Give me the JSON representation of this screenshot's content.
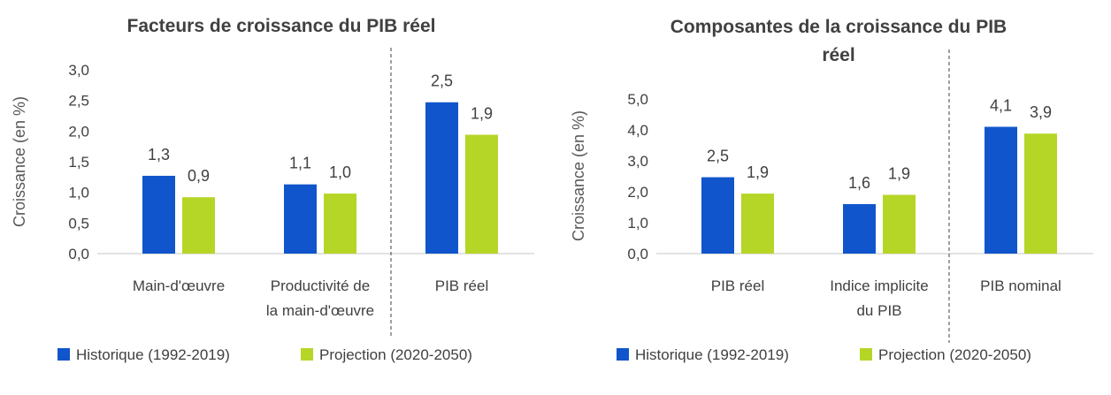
{
  "colors": {
    "historique": "#1155CC",
    "projection": "#B5D626",
    "axis": "#D9D9D9",
    "divider": "#404040"
  },
  "chart_data": [
    {
      "type": "bar",
      "title": [
        "Facteurs de croissance du PIB réel"
      ],
      "ylabel": "Croissance (en %)",
      "ylim": [
        0,
        3
      ],
      "yticks": [
        "0,0",
        "0,5",
        "1,0",
        "1,5",
        "2,0",
        "2,5",
        "3,0"
      ],
      "categories": [
        [
          "Main-d'œuvre"
        ],
        [
          "Productivité de",
          "la main-d'œuvre"
        ],
        [
          "PIB réel"
        ]
      ],
      "series": [
        {
          "name": "Historique (1992-2019)",
          "values": [
            1.27,
            1.13,
            2.47
          ],
          "labels": [
            "1,3",
            "1,1",
            "2,5"
          ]
        },
        {
          "name": "Projection (2020-2050)",
          "values": [
            0.92,
            0.98,
            1.94
          ],
          "labels": [
            "0,9",
            "1,0",
            "1,9"
          ]
        }
      ],
      "divider_after_category": 1,
      "legend": "bottom-left"
    },
    {
      "type": "bar",
      "title": [
        "Composantes de la croissance du PIB",
        "réel"
      ],
      "ylabel": "Croissance (en %)",
      "ylim": [
        0,
        5
      ],
      "yticks": [
        "0,0",
        "1,0",
        "2,0",
        "3,0",
        "4,0",
        "5,0"
      ],
      "categories": [
        [
          "PIB réel"
        ],
        [
          "Indice implicite",
          "du PIB"
        ],
        [
          "PIB nominal"
        ]
      ],
      "series": [
        {
          "name": "Historique (1992-2019)",
          "values": [
            2.47,
            1.6,
            4.1
          ],
          "labels": [
            "2,5",
            "1,6",
            "4,1"
          ]
        },
        {
          "name": "Projection (2020-2050)",
          "values": [
            1.94,
            1.9,
            3.88
          ],
          "labels": [
            "1,9",
            "1,9",
            "3,9"
          ]
        }
      ],
      "divider_after_category": 1,
      "legend": "bottom-left"
    }
  ]
}
